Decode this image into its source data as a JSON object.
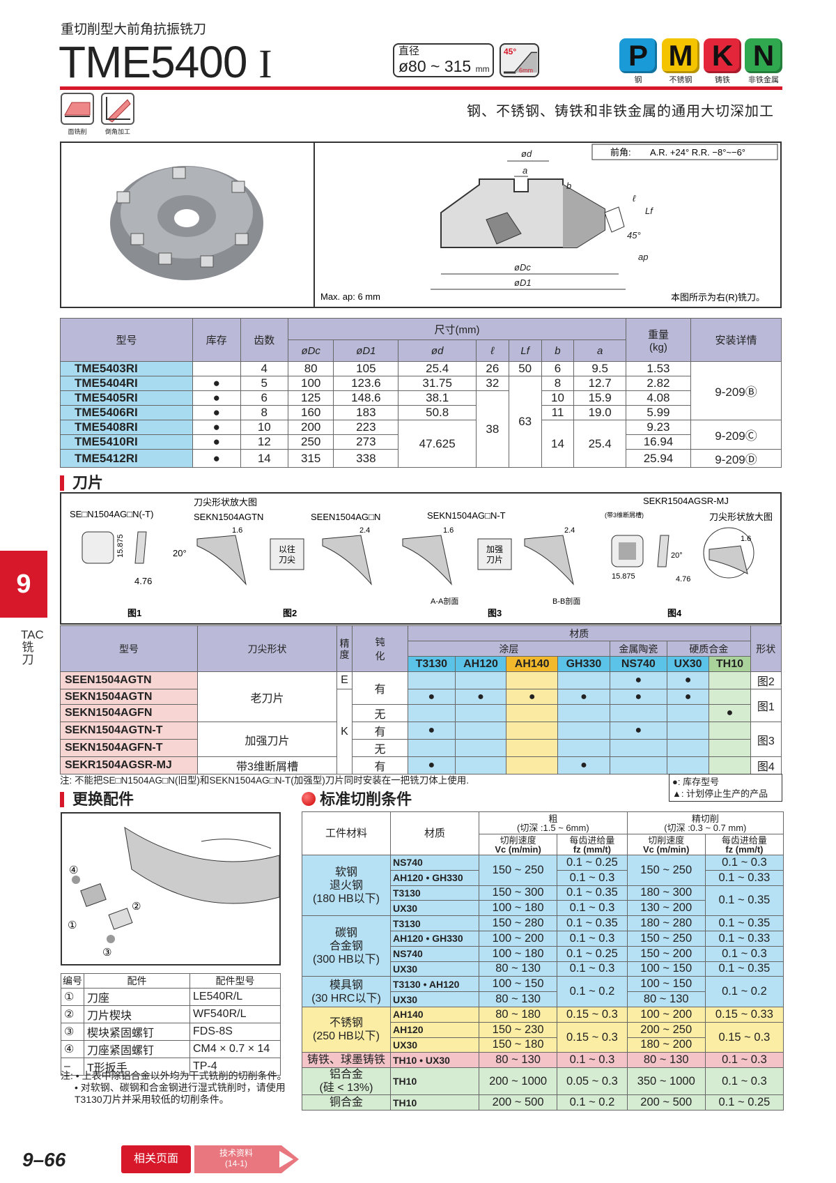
{
  "header": {
    "subtitle": "重切削型大前角抗振铣刀",
    "title": "TME5400",
    "title_suffix": "I",
    "diameter_label": "直径",
    "diameter_value": "ø80 ~ 315",
    "diameter_unit": "mm",
    "angle_badge": {
      "angle": "45°",
      "depth": "6mm"
    },
    "grades": [
      {
        "letter": "P",
        "label": "钢",
        "color": "#1a9ad6"
      },
      {
        "letter": "M",
        "label": "不锈钢",
        "color": "#f5c400"
      },
      {
        "letter": "K",
        "label": "铸铁",
        "color": "#e3263a"
      },
      {
        "letter": "N",
        "label": "非铁金属",
        "color": "#2fa84f"
      }
    ],
    "operations": [
      {
        "label": "面铣削",
        "icon": "face-milling-icon"
      },
      {
        "label": "倒角加工",
        "icon": "chamfering-icon"
      }
    ],
    "tagline": "钢、不锈钢、铸铁和非铁金属的通用大切深加工"
  },
  "figure": {
    "rake_label": "前角:",
    "rake_value": "A.R. +24°   R.R. −8°~−6°",
    "dims": [
      "ød",
      "a",
      "b",
      "ℓ",
      "Lf",
      "45°",
      "ap",
      "øDc",
      "øD1"
    ],
    "max_ap": "Max. ap: 6 mm",
    "right_hand_note": "本图所示为右(R)铣刀。"
  },
  "body_table": {
    "headers": {
      "model": "型号",
      "stock": "库存",
      "teeth": "齿数",
      "dims": "尺寸(mm)",
      "Dc": "øDc",
      "D1": "øD1",
      "d": "ød",
      "l": "ℓ",
      "Lf": "Lf",
      "b": "b",
      "a": "a",
      "weight": "重量",
      "weight_unit": "(kg)",
      "install": "安装详情"
    },
    "rows": [
      [
        "TME5403RI",
        "",
        "4",
        "80",
        "105",
        "25.4",
        "26",
        "50",
        "6",
        "9.5",
        "1.53",
        "9-209Ⓑ"
      ],
      [
        "TME5404RI",
        "●",
        "5",
        "100",
        "123.6",
        "31.75",
        "32",
        "63",
        "8",
        "12.7",
        "2.82"
      ],
      [
        "TME5405RI",
        "●",
        "6",
        "125",
        "148.6",
        "38.1",
        "38",
        "10",
        "15.9",
        "4.08"
      ],
      [
        "TME5406RI",
        "●",
        "8",
        "160",
        "183",
        "50.8",
        "11",
        "19.0",
        "5.99"
      ],
      [
        "TME5408RI",
        "●",
        "10",
        "200",
        "223",
        "47.625",
        "14",
        "25.4",
        "9.23",
        "9-209Ⓒ"
      ],
      [
        "TME5410RI",
        "●",
        "12",
        "250",
        "273",
        "16.94"
      ],
      [
        "TME5412RI",
        "●",
        "14",
        "315",
        "338",
        "25.94",
        "9-209Ⓓ"
      ]
    ]
  },
  "inserts": {
    "heading": "刀片",
    "fig1": {
      "code": "SE□N1504AG□N(-T)",
      "dims": [
        "15.875",
        "20°",
        "4.76"
      ],
      "caption": "图1"
    },
    "fig2": {
      "title": "刀尖形状放大图",
      "code": "SEKN1504AGTN",
      "code2": "SEEN1504AG□N",
      "dims": [
        "1.6",
        "2.4"
      ],
      "box": "以往\n刀尖",
      "caption": "图2"
    },
    "fig3": {
      "code": "SEKN1504AG□N-T",
      "dims": [
        "1.6",
        "2.4"
      ],
      "box": "加强\n刀片",
      "section_a": "A-A剖面",
      "section_b": "B-B剖面",
      "caption": "图3"
    },
    "fig4": {
      "code": "SEKR1504AGSR-MJ",
      "note": "(带3维断屑槽)",
      "title": "刀尖形状放大图",
      "dims": [
        "15.875",
        "20°",
        "4.76",
        "1.6"
      ],
      "caption": "图4"
    }
  },
  "insert_table": {
    "headers": {
      "model": "型号",
      "tip": "刀尖形状",
      "precision": "精度",
      "honing": "钝化",
      "grade": "材质",
      "coated": "涂层",
      "cermet": "金属陶瓷",
      "carbide": "硬质合金",
      "shape": "形状",
      "grades": [
        "T3130",
        "AH120",
        "AH140",
        "GH330",
        "NS740",
        "UX30",
        "TH10"
      ]
    },
    "rows": [
      [
        "SEEN1504AGTN",
        "老刀片",
        "E",
        "有",
        "",
        "",
        "",
        "",
        "●",
        "●",
        "",
        "图2"
      ],
      [
        "SEKN1504AGTN",
        "K",
        "●",
        "●",
        "●",
        "●",
        "●",
        "●",
        "",
        "图1"
      ],
      [
        "SEKN1504AGFN",
        "无",
        "",
        "",
        "",
        "",
        "",
        "",
        "●"
      ],
      [
        "SEKN1504AGTN-T",
        "加强刀片",
        "有",
        "●",
        "",
        "",
        "",
        "●",
        "",
        "",
        "图3"
      ],
      [
        "SEKN1504AGFN-T",
        "无",
        "",
        "",
        "",
        "",
        "",
        "",
        ""
      ],
      [
        "SEKR1504AGSR-MJ",
        "带3维断屑槽",
        "有",
        "●",
        "",
        "",
        "●",
        "",
        "",
        "",
        "图4"
      ]
    ],
    "note": "注: 不能把SE□N1504AG□N(旧型)和SEKN1504AG□N-T(加强型)刀片同时安装在一把铣刀体上使用.",
    "legend": [
      "●: 库存型号",
      "▲: 计划停止生产的产品"
    ]
  },
  "parts": {
    "heading": "更换配件",
    "callouts": [
      "①",
      "②",
      "③",
      "④"
    ],
    "headers": [
      "编号",
      "配件",
      "配件型号"
    ],
    "rows": [
      [
        "①",
        "刀座",
        "LE540R/L"
      ],
      [
        "②",
        "刀片楔块",
        "WF540R/L"
      ],
      [
        "③",
        "楔块紧固螺钉",
        "FDS-8S"
      ],
      [
        "④",
        "刀座紧固螺钉",
        "CM4 × 0.7 × 14"
      ],
      [
        "–",
        "T形扳手",
        "TP-4"
      ]
    ],
    "notes": [
      "注: • 上表中除铝合金以外均为干式铣削的切削条件。",
      "• 对软钢、碳钢和合金钢进行湿式铣削时，请使用T3130刀片并采用较低的切削条件。"
    ]
  },
  "cutting": {
    "heading": "标准切削条件",
    "headers": {
      "workpiece": "工件材料",
      "grade": "材质",
      "rough": "粗",
      "rough_depth": "(切深 :1.5 ~ 6mm)",
      "fine": "精切削",
      "fine_depth": "(切深 :0.3 ~ 0.7 mm)",
      "vc": "切削速度",
      "vc_unit": "Vc (m/min)",
      "fz": "每齿进给量",
      "fz_unit": "fz (mm/t)"
    },
    "rows": [
      [
        "软钢\n退火钢\n(180 HB以下)",
        "NS740",
        "150 ~ 250",
        "0.1 ~ 0.25",
        "150 ~ 250",
        "0.1 ~ 0.3"
      ],
      [
        "AH120 • GH330",
        "0.1 ~ 0.3",
        "0.1 ~ 0.33"
      ],
      [
        "T3130",
        "150 ~ 300",
        "0.1 ~ 0.35",
        "180 ~ 300",
        "0.1 ~ 0.35"
      ],
      [
        "UX30",
        "100 ~ 180",
        "0.1 ~ 0.3",
        "130 ~ 200"
      ],
      [
        "碳钢\n合金钢\n(300 HB以下)",
        "T3130",
        "150 ~ 280",
        "0.1 ~ 0.35",
        "180 ~ 280",
        "0.1 ~ 0.35"
      ],
      [
        "AH120 • GH330",
        "100 ~ 200",
        "0.1 ~ 0.3",
        "150 ~ 250",
        "0.1 ~ 0.33"
      ],
      [
        "NS740",
        "100 ~ 180",
        "0.1 ~ 0.25",
        "150 ~ 200",
        "0.1 ~ 0.3"
      ],
      [
        "UX30",
        "80 ~ 130",
        "0.1 ~ 0.3",
        "100 ~ 150",
        "0.1 ~ 0.35"
      ],
      [
        "模具钢\n(30 HRC以下)",
        "T3130 • AH120",
        "100 ~ 150",
        "0.1 ~ 0.2",
        "100 ~ 150",
        "0.1 ~ 0.2"
      ],
      [
        "UX30",
        "80 ~ 130",
        "80 ~ 130"
      ],
      [
        "不锈钢\n(250 HB以下)",
        "AH140",
        "80 ~ 180",
        "0.15 ~ 0.3",
        "100 ~ 200",
        "0.15 ~ 0.33"
      ],
      [
        "AH120",
        "150 ~ 230",
        "0.15 ~ 0.3",
        "200 ~ 250",
        "0.15 ~ 0.3"
      ],
      [
        "UX30",
        "150 ~ 180",
        "180 ~ 200"
      ],
      [
        "铸铁、球墨铸铁",
        "TH10 • UX30",
        "80 ~ 130",
        "0.1 ~ 0.3",
        "80 ~ 130",
        "0.1 ~ 0.3"
      ],
      [
        "铝合金\n(硅 < 13%)",
        "TH10",
        "200 ~ 1000",
        "0.05 ~ 0.3",
        "350 ~ 1000",
        "0.1 ~ 0.3"
      ],
      [
        "铜合金",
        "TH10",
        "200 ~ 500",
        "0.1 ~ 0.2",
        "200 ~ 500",
        "0.1 ~ 0.25"
      ]
    ]
  },
  "side_tab": {
    "number": "9",
    "label": "TAC铣刀"
  },
  "footer": {
    "page": "9–66",
    "related": "相关页面",
    "tech": "技术资料\n(14-1)"
  },
  "colors": {
    "accent_red": "#d7182a",
    "header_lavender": "#babad8",
    "row_blue": "#b6e0f3",
    "row_yellow": "#fbeda4",
    "row_pink": "#f4c3c7",
    "row_green": "#d5ebd2"
  }
}
